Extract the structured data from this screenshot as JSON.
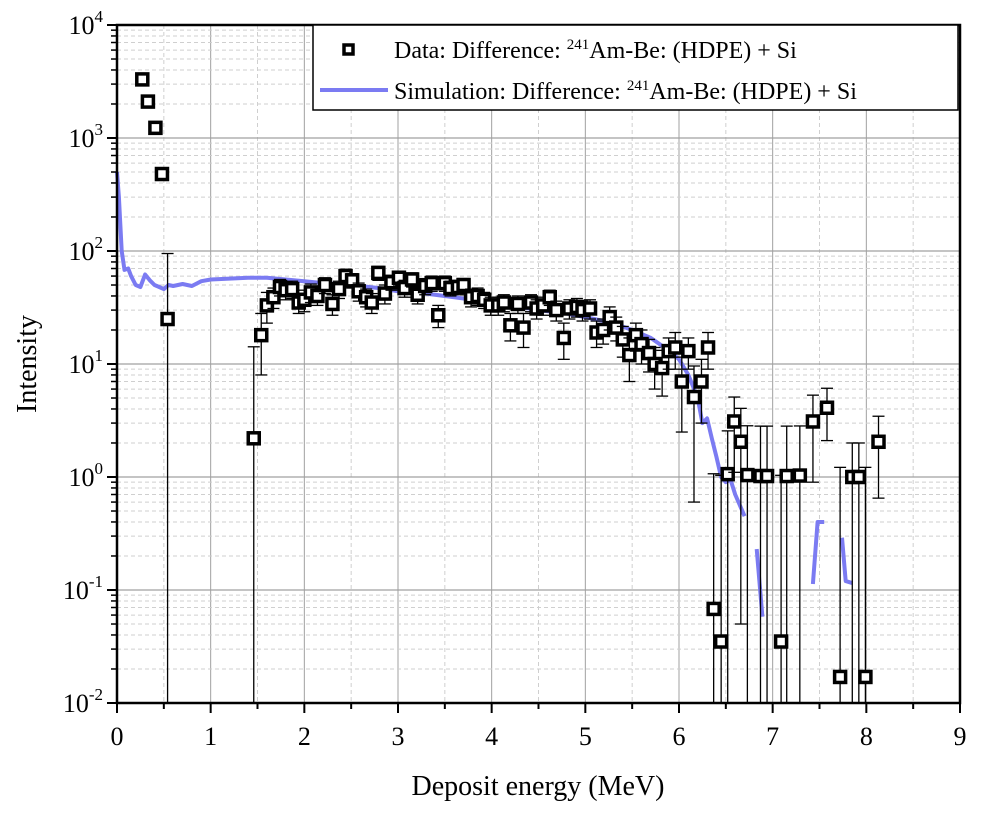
{
  "chart_data": {
    "type": "scatter",
    "title": "",
    "xlabel": "Deposit energy (MeV)",
    "ylabel": "Intensity",
    "xlim": [
      0,
      9
    ],
    "ylim": [
      0.01,
      10000
    ],
    "yscale": "log",
    "grid": true,
    "legend_position": "top-right",
    "x_ticks": [
      "0",
      "1",
      "2",
      "3",
      "4",
      "5",
      "6",
      "7",
      "8",
      "9"
    ],
    "y_ticks": [
      {
        "base": "10",
        "exp": "-2"
      },
      {
        "base": "10",
        "exp": "-1"
      },
      {
        "base": "10",
        "exp": "0"
      },
      {
        "base": "10",
        "exp": "1"
      },
      {
        "base": "10",
        "exp": "2"
      },
      {
        "base": "10",
        "exp": "3"
      },
      {
        "base": "10",
        "exp": "4"
      }
    ],
    "legend": [
      {
        "prefix": "Data: Difference: ",
        "sup": "241",
        "suffix": "Am-Be: (HDPE) + Si"
      },
      {
        "prefix": "Simulation: Difference: ",
        "sup": "241",
        "suffix": "Am-Be: (HDPE) + Si"
      }
    ],
    "colors": {
      "data": "#000000",
      "simulation": "#7b7bf2",
      "grid_major": "#a0a0a0",
      "grid_minor": "#cfcfcf"
    },
    "series": [
      {
        "name": "Data: Difference: 241Am-Be: (HDPE) + Si",
        "kind": "scatter-errorbar",
        "points": [
          [
            0.27,
            3300,
            0
          ],
          [
            0.33,
            2100,
            0
          ],
          [
            0.41,
            1230,
            0
          ],
          [
            0.48,
            480,
            20
          ],
          [
            0.54,
            25,
            70
          ],
          [
            1.46,
            2.2,
            12
          ],
          [
            1.54,
            18,
            10
          ],
          [
            1.6,
            33,
            10
          ],
          [
            1.67,
            39,
            8
          ],
          [
            1.74,
            48,
            8
          ],
          [
            1.8,
            45,
            8
          ],
          [
            1.87,
            46,
            8
          ],
          [
            1.94,
            35,
            7
          ],
          [
            2.0,
            37,
            8
          ],
          [
            2.07,
            43,
            8
          ],
          [
            2.14,
            40,
            7
          ],
          [
            2.22,
            50,
            8
          ],
          [
            2.3,
            34,
            7
          ],
          [
            2.37,
            46,
            8
          ],
          [
            2.44,
            60,
            9
          ],
          [
            2.51,
            55,
            8
          ],
          [
            2.58,
            44,
            8
          ],
          [
            2.66,
            39,
            7
          ],
          [
            2.72,
            35,
            7
          ],
          [
            2.79,
            64,
            9
          ],
          [
            2.86,
            42,
            8
          ],
          [
            2.93,
            53,
            8
          ],
          [
            3.01,
            58,
            8
          ],
          [
            3.07,
            47,
            8
          ],
          [
            3.15,
            56,
            8
          ],
          [
            3.21,
            41,
            7
          ],
          [
            3.29,
            49,
            8
          ],
          [
            3.36,
            52,
            8
          ],
          [
            3.43,
            27,
            6
          ],
          [
            3.5,
            52,
            8
          ],
          [
            3.56,
            47,
            7
          ],
          [
            3.64,
            48,
            7
          ],
          [
            3.7,
            50,
            7
          ],
          [
            3.78,
            39,
            7
          ],
          [
            3.85,
            40,
            7
          ],
          [
            3.92,
            37,
            6
          ],
          [
            3.99,
            33,
            6
          ],
          [
            4.07,
            33,
            6
          ],
          [
            4.13,
            35,
            6
          ],
          [
            4.2,
            22,
            6
          ],
          [
            4.28,
            34,
            6
          ],
          [
            4.34,
            21,
            7
          ],
          [
            4.42,
            35,
            6
          ],
          [
            4.48,
            31,
            6
          ],
          [
            4.55,
            33,
            6
          ],
          [
            4.62,
            39,
            6
          ],
          [
            4.69,
            30,
            6
          ],
          [
            4.77,
            17,
            6
          ],
          [
            4.83,
            31,
            6
          ],
          [
            4.91,
            32,
            6
          ],
          [
            4.97,
            30,
            6
          ],
          [
            5.05,
            31,
            6
          ],
          [
            5.12,
            19,
            5
          ],
          [
            5.19,
            20,
            5
          ],
          [
            5.26,
            26,
            6
          ],
          [
            5.33,
            21,
            5
          ],
          [
            5.4,
            16.5,
            5
          ],
          [
            5.47,
            12,
            5
          ],
          [
            5.54,
            18,
            5
          ],
          [
            5.6,
            15,
            5
          ],
          [
            5.68,
            12.5,
            4
          ],
          [
            5.74,
            10,
            4
          ],
          [
            5.82,
            9.2,
            4
          ],
          [
            5.89,
            13,
            4
          ],
          [
            5.96,
            14,
            5
          ],
          [
            6.03,
            7,
            4.5
          ],
          [
            6.1,
            13,
            4
          ],
          [
            6.16,
            5.1,
            4.5
          ],
          [
            6.24,
            7,
            4
          ],
          [
            6.31,
            14,
            5
          ],
          [
            6.37,
            0.068,
            1
          ],
          [
            6.45,
            0.035,
            1
          ],
          [
            6.52,
            1.06,
            1.5
          ],
          [
            6.59,
            3.1,
            2
          ],
          [
            6.66,
            2.05,
            2
          ],
          [
            6.73,
            1.04,
            1.8
          ],
          [
            6.87,
            1.02,
            1.8
          ],
          [
            6.94,
            1.02,
            1.8
          ],
          [
            7.09,
            0.035,
            1
          ],
          [
            7.15,
            1.02,
            1.8
          ],
          [
            7.29,
            1.03,
            1.8
          ],
          [
            7.43,
            3.1,
            2.2
          ],
          [
            7.58,
            4.1,
            2
          ],
          [
            7.72,
            0.017,
            1.2
          ],
          [
            7.85,
            1.0,
            1
          ],
          [
            7.92,
            1.0,
            1
          ],
          [
            7.99,
            0.017,
            1.2
          ],
          [
            8.13,
            2.05,
            1.4
          ]
        ]
      },
      {
        "name": "Simulation: Difference: 241Am-Be: (HDPE) + Si",
        "kind": "line",
        "segments": [
          [
            [
              0.0,
              500
            ],
            [
              0.02,
              300
            ],
            [
              0.05,
              100
            ],
            [
              0.08,
              68
            ],
            [
              0.12,
              70
            ],
            [
              0.15,
              60
            ],
            [
              0.2,
              50
            ],
            [
              0.25,
              48
            ],
            [
              0.3,
              62
            ],
            [
              0.35,
              55
            ],
            [
              0.4,
              50
            ],
            [
              0.45,
              48
            ],
            [
              0.5,
              46
            ],
            [
              0.55,
              50
            ],
            [
              0.6,
              49
            ],
            [
              0.7,
              51
            ],
            [
              0.8,
              49
            ],
            [
              0.9,
              54
            ],
            [
              1.0,
              56
            ],
            [
              1.2,
              57
            ],
            [
              1.4,
              58
            ],
            [
              1.6,
              58
            ],
            [
              1.8,
              56
            ],
            [
              2.0,
              54
            ],
            [
              2.2,
              52
            ],
            [
              2.5,
              50
            ],
            [
              2.8,
              47
            ],
            [
              3.0,
              44
            ],
            [
              3.3,
              42
            ],
            [
              3.5,
              40
            ],
            [
              3.8,
              37
            ],
            [
              4.0,
              34
            ],
            [
              4.3,
              32
            ],
            [
              4.5,
              30
            ],
            [
              4.8,
              28
            ],
            [
              5.0,
              26
            ],
            [
              5.3,
              23
            ],
            [
              5.5,
              20
            ],
            [
              5.7,
              17
            ],
            [
              5.9,
              13
            ],
            [
              6.0,
              11
            ],
            [
              6.1,
              8
            ],
            [
              6.2,
              5
            ],
            [
              6.25,
              3
            ],
            [
              6.3,
              3.3
            ],
            [
              6.35,
              2.2
            ],
            [
              6.4,
              1.5
            ],
            [
              6.45,
              1.0
            ],
            [
              6.5,
              0.9
            ],
            [
              6.55,
              0.95
            ],
            [
              6.6,
              0.7
            ],
            [
              6.7,
              0.45
            ]
          ],
          [
            [
              6.83,
              0.23
            ],
            [
              6.89,
              0.058
            ]
          ],
          [
            [
              7.43,
              0.113
            ],
            [
              7.48,
              0.4
            ],
            [
              7.55,
              0.4
            ]
          ],
          [
            [
              7.74,
              0.29
            ],
            [
              7.78,
              0.12
            ],
            [
              7.85,
              0.115
            ]
          ]
        ]
      }
    ]
  }
}
